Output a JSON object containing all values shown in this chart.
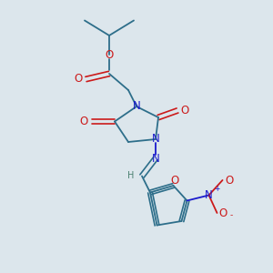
{
  "background_color": "#dce6ec",
  "bond_color": "#2d6e8a",
  "atom_colors": {
    "N": "#1a1acc",
    "O": "#cc1a1a",
    "H": "#4a8070",
    "C": "#2d6e8a"
  },
  "font_size": 8.5,
  "font_size_small": 6.5,
  "lw": 1.3
}
